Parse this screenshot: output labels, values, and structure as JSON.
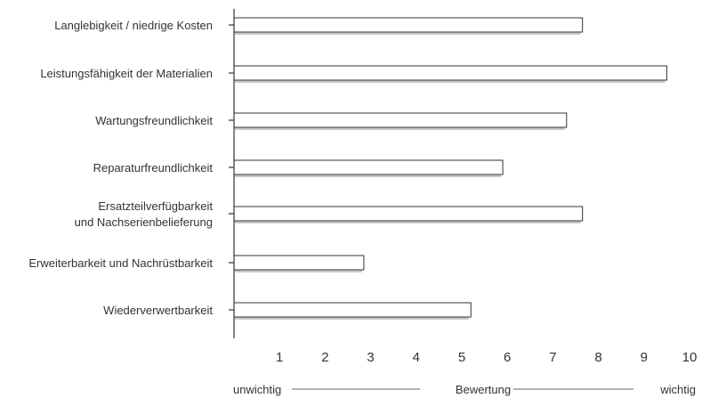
{
  "chart_data": {
    "type": "bar",
    "orientation": "horizontal",
    "categories": [
      [
        "Langlebigkeit / niedrige Kosten"
      ],
      [
        "Leistungsfähigkeit der Materialien"
      ],
      [
        "Wartungsfreundlichkeit"
      ],
      [
        "Reparaturfreundlichkeit"
      ],
      [
        "Ersatzteilverfügbarkeit",
        "und Nachserienbelieferung"
      ],
      [
        "Erweiterbarkeit und Nachrüstbarkeit"
      ],
      [
        "Wiederverwertbarkeit"
      ]
    ],
    "values": [
      7.65,
      9.5,
      7.3,
      5.9,
      7.65,
      2.85,
      5.2
    ],
    "xlim": [
      0,
      10
    ],
    "xticks": [
      "1",
      "2",
      "3",
      "4",
      "5",
      "6",
      "7",
      "8",
      "9",
      "10"
    ],
    "scale_labels": {
      "low": "unwichtig",
      "middle": "Bewertung",
      "high": "wichtig"
    },
    "grid": false,
    "colors": {
      "bar_fill": "#ffffff",
      "bar_stroke": "#333333",
      "bar_shadow": "#c8c8c8",
      "axis": "#333333",
      "scale_line": "#b3b3b3"
    }
  }
}
